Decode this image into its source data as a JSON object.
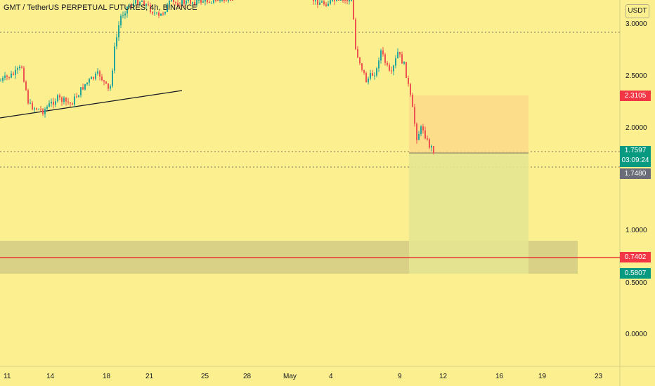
{
  "header": {
    "symbol_title": "GMT / TetherUS PERPETUAL FUTURES, 4h, BINANCE",
    "currency": "USDT"
  },
  "colors": {
    "background": "#fcef8f",
    "up_candle": "#26a69a",
    "down_candle": "#ef5350",
    "stop_zone": "#fcd98a",
    "target_zone": "#e5e591",
    "support_zone": "#d4cd85",
    "support_line": "#e53935",
    "trendline": "#131722"
  },
  "price_axis": {
    "ticks": [
      "3.0000",
      "2.5000",
      "2.0000",
      "1.0000",
      "0.5000",
      "0.0000"
    ]
  },
  "time_axis": {
    "ticks": [
      "11",
      "14",
      "18",
      "21",
      "25",
      "28",
      "May",
      "4",
      "9",
      "12",
      "16",
      "19",
      "23"
    ]
  },
  "price_tags": {
    "stop": {
      "value": "2.3105",
      "color": "#f23645"
    },
    "current": {
      "value": "1.7597",
      "countdown": "03:09:24",
      "color": "#089981"
    },
    "entry": {
      "value": "1.7480",
      "color": "#6a6d78"
    },
    "support": {
      "value": "0.7402",
      "color": "#f23645"
    },
    "target": {
      "value": "0.5807",
      "color": "#089981"
    }
  }
}
